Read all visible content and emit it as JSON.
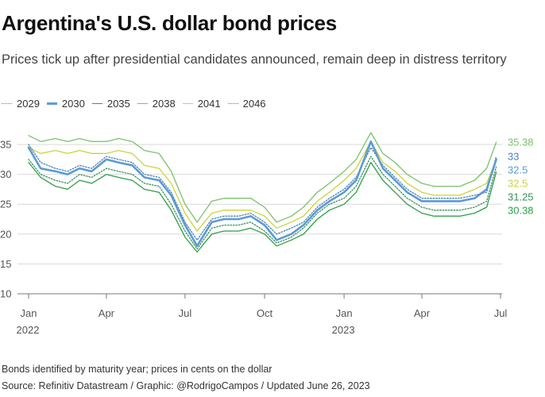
{
  "chart_data": {
    "type": "line",
    "title": "Argentina's U.S. dollar bond prices",
    "subtitle": "Prices tick up after presidential candidates announced, remain deep in distress territory",
    "xlabel": "",
    "ylabel": "",
    "ylim": [
      10,
      37
    ],
    "yticks": [
      10,
      15,
      20,
      25,
      30,
      35
    ],
    "grid": true,
    "legend_position": "top-left",
    "x": [
      "2022-01-01",
      "2022-01-15",
      "2022-02-01",
      "2022-02-15",
      "2022-03-01",
      "2022-03-15",
      "2022-04-01",
      "2022-04-15",
      "2022-05-01",
      "2022-05-15",
      "2022-06-01",
      "2022-06-15",
      "2022-07-01",
      "2022-07-15",
      "2022-08-01",
      "2022-08-15",
      "2022-09-01",
      "2022-09-15",
      "2022-10-01",
      "2022-10-15",
      "2022-11-01",
      "2022-11-15",
      "2022-12-01",
      "2022-12-15",
      "2023-01-01",
      "2023-01-15",
      "2023-02-01",
      "2023-02-15",
      "2023-03-01",
      "2023-03-15",
      "2023-04-01",
      "2023-04-15",
      "2023-05-01",
      "2023-05-15",
      "2023-06-01",
      "2023-06-15",
      "2023-06-26"
    ],
    "x_ticks": [
      {
        "date": "2022-01-01",
        "label": "Jan",
        "year": "2022"
      },
      {
        "date": "2022-04-01",
        "label": "Apr",
        "year": ""
      },
      {
        "date": "2022-07-01",
        "label": "Jul",
        "year": ""
      },
      {
        "date": "2022-10-01",
        "label": "Oct",
        "year": ""
      },
      {
        "date": "2023-01-01",
        "label": "Jan",
        "year": "2023"
      },
      {
        "date": "2023-04-01",
        "label": "Apr",
        "year": ""
      },
      {
        "date": "2023-07-01",
        "label": "Jul",
        "year": ""
      }
    ],
    "series": [
      {
        "name": "2029",
        "color": "#4a7fb5",
        "style": "dotted",
        "end_label": "33",
        "values": [
          35,
          32,
          31,
          30.5,
          31.5,
          31,
          33,
          32.5,
          32,
          30,
          29.5,
          27,
          22,
          19,
          22.5,
          23,
          23,
          23.5,
          22,
          20,
          21,
          22,
          24.5,
          26,
          27.5,
          29.5,
          34.5,
          31.5,
          29.5,
          27.5,
          26,
          26,
          26,
          26,
          26.5,
          27,
          33
        ]
      },
      {
        "name": "2030",
        "color": "#5b9bd5",
        "style": "thick",
        "end_label": "32.5",
        "values": [
          34.5,
          31,
          30.5,
          30,
          31,
          30.5,
          32.5,
          32,
          31.5,
          29.5,
          29,
          26.5,
          21.5,
          18,
          22,
          22.5,
          22.5,
          23,
          21.5,
          19,
          20,
          21.5,
          24,
          25.5,
          27,
          29,
          35.5,
          31,
          29,
          27,
          25.5,
          25.5,
          25.5,
          25.5,
          26,
          27.5,
          32.5
        ]
      },
      {
        "name": "2035",
        "color": "#2e9e47",
        "style": "solid",
        "end_label": "30.38",
        "values": [
          32,
          29.5,
          28,
          27.5,
          29,
          28.5,
          30,
          29.5,
          29,
          27.5,
          27,
          24,
          19.5,
          17,
          20,
          20.5,
          20.5,
          21,
          20,
          18,
          19,
          20,
          22.5,
          24,
          25,
          27,
          32,
          29,
          27,
          25,
          23.5,
          23,
          23,
          23,
          23.5,
          24.5,
          30.38
        ]
      },
      {
        "name": "2038",
        "color": "#7ac36a",
        "style": "solid",
        "end_label": "35.38",
        "values": [
          36.5,
          35.5,
          36,
          35.5,
          36,
          35.5,
          35.5,
          36,
          35.5,
          34,
          33.5,
          30.5,
          25,
          22,
          25.5,
          26,
          26,
          26,
          24.5,
          22,
          23,
          24.5,
          27,
          28.5,
          30.5,
          32.5,
          37,
          33.5,
          32,
          30,
          28.5,
          28,
          28,
          28,
          29,
          31,
          35.38
        ]
      },
      {
        "name": "2041",
        "color": "#c8d43a",
        "style": "solid",
        "end_label": "32.5",
        "values": [
          34.5,
          33.5,
          34,
          33.5,
          34,
          33.5,
          33.5,
          34,
          33.5,
          31.5,
          31,
          28.5,
          23.5,
          20.5,
          23.5,
          24,
          24,
          24,
          23,
          21,
          22,
          23,
          25.5,
          27,
          29,
          31,
          35.5,
          32,
          30.5,
          28.5,
          27,
          26.5,
          26.5,
          26.5,
          27.5,
          28.5,
          32.5
        ]
      },
      {
        "name": "2046",
        "color": "#3a8f5c",
        "style": "dotted",
        "end_label": "31.25",
        "values": [
          32.5,
          30,
          29,
          28.5,
          30,
          29.5,
          31,
          30.5,
          30,
          28.5,
          28,
          25,
          20.5,
          17.5,
          21,
          21.5,
          21.5,
          22,
          20.5,
          18.5,
          19.5,
          21,
          23.5,
          25,
          26,
          28,
          33,
          30,
          28,
          26,
          24.5,
          24,
          24,
          24,
          24.5,
          25.5,
          31.25
        ]
      }
    ]
  },
  "footer": {
    "note": "Bonds identified by maturity year; prices in cents on the dollar",
    "source": "Source: Refinitiv Datastream / Graphic: @RodrigoCampos / Updated June 26, 2023"
  }
}
